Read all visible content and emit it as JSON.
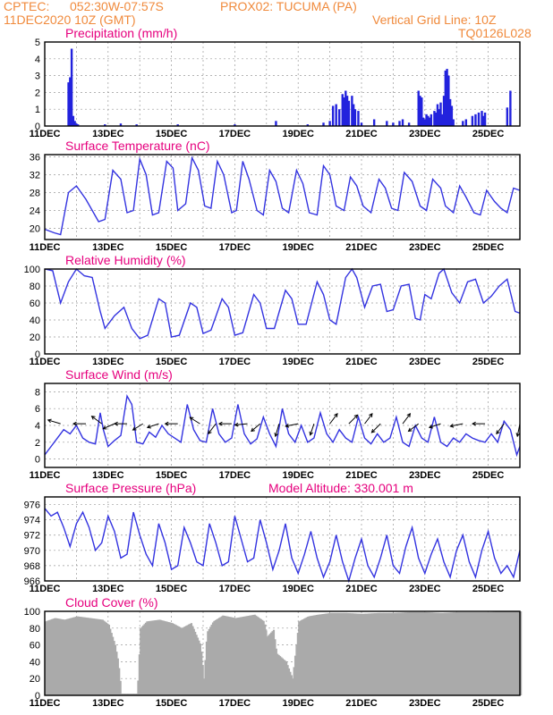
{
  "header": {
    "source": "CPTEC:",
    "coords": "052:30W-07:57S",
    "station": "PROX02: TUCUMA (PA)",
    "datetime": "11DEC2020 10Z (GMT)",
    "grid_note": "Vertical Grid Line: 10Z",
    "code": "TQ0126L028"
  },
  "colors": {
    "header": "#f08a3c",
    "title": "#e6007e",
    "series": "#3333e0",
    "cloud": "#aaaaaa"
  },
  "x_axis": {
    "start_day": 11,
    "end_day": 26,
    "tick_labels": [
      "11DEC",
      "13DEC",
      "15DEC",
      "17DEC",
      "19DEC",
      "21DEC",
      "23DEC",
      "25DEC"
    ],
    "tick_days": [
      11,
      13,
      15,
      17,
      19,
      21,
      23,
      25
    ]
  },
  "chart_data": [
    {
      "id": "precip",
      "type": "bar",
      "title": "Precipitation (mm/h)",
      "ylim": [
        0,
        5
      ],
      "yticks": [
        0,
        1,
        2,
        3,
        4,
        5
      ],
      "x": [
        11.75,
        11.8,
        11.85,
        11.9,
        11.95,
        12.0,
        12.05,
        12.9,
        13.4,
        13.9,
        15.2,
        17.0,
        18.3,
        19.3,
        19.8,
        20.0,
        20.1,
        20.2,
        20.3,
        20.4,
        20.45,
        20.5,
        20.55,
        20.6,
        20.7,
        20.75,
        20.8,
        20.9,
        21.0,
        21.4,
        21.8,
        22.0,
        22.2,
        22.3,
        22.5,
        22.8,
        22.85,
        22.9,
        22.95,
        23.0,
        23.05,
        23.1,
        23.15,
        23.2,
        23.3,
        23.35,
        23.4,
        23.45,
        23.5,
        23.55,
        23.6,
        23.65,
        23.7,
        23.75,
        23.8,
        23.85,
        23.9,
        24.2,
        24.3,
        24.5,
        24.6,
        24.7,
        24.8,
        24.85,
        24.9,
        25.6,
        25.7
      ],
      "values": [
        2.6,
        2.9,
        4.6,
        0.6,
        0.3,
        0.15,
        0.1,
        0.1,
        0.15,
        0.1,
        0.1,
        0.1,
        0.3,
        0.1,
        0.2,
        0.3,
        1.2,
        1.3,
        1.0,
        1.9,
        1.7,
        2.1,
        1.8,
        1.5,
        1.8,
        1.3,
        1.0,
        0.9,
        0.2,
        0.4,
        0.3,
        0.2,
        0.3,
        0.4,
        0.2,
        2.1,
        1.8,
        1.7,
        0.5,
        0.4,
        0.7,
        0.6,
        0.5,
        0.7,
        0.9,
        0.8,
        1.3,
        1.0,
        1.4,
        0.7,
        1.8,
        3.3,
        3.4,
        3.0,
        1.6,
        1.2,
        0.4,
        0.3,
        0.4,
        0.6,
        0.7,
        0.8,
        0.9,
        0.6,
        0.8,
        1.1,
        2.1
      ]
    },
    {
      "id": "temp",
      "type": "line",
      "title": "Surface Temperature (nC)",
      "ylim": [
        17.5,
        36.5
      ],
      "yticks": [
        20,
        24,
        28,
        32,
        36
      ],
      "x": [
        11.0,
        11.3,
        11.5,
        11.75,
        12.0,
        12.3,
        12.7,
        12.9,
        13.15,
        13.4,
        13.6,
        13.8,
        14.0,
        14.2,
        14.4,
        14.6,
        14.85,
        15.05,
        15.2,
        15.45,
        15.65,
        15.85,
        16.05,
        16.25,
        16.45,
        16.65,
        16.9,
        17.05,
        17.25,
        17.45,
        17.7,
        17.9,
        18.1,
        18.3,
        18.5,
        18.7,
        18.95,
        19.15,
        19.35,
        19.6,
        19.8,
        20.0,
        20.2,
        20.45,
        20.65,
        20.85,
        21.05,
        21.3,
        21.55,
        21.75,
        21.95,
        22.15,
        22.35,
        22.6,
        22.85,
        23.05,
        23.25,
        23.5,
        23.65,
        23.9,
        24.1,
        24.3,
        24.55,
        24.75,
        24.95,
        25.2,
        25.4,
        25.6,
        25.8,
        26.0
      ],
      "values": [
        19.8,
        19.0,
        18.6,
        28.0,
        29.5,
        26.5,
        21.5,
        22.0,
        33.0,
        31.0,
        23.5,
        24.0,
        35.5,
        32.0,
        23.0,
        23.5,
        35.0,
        33.5,
        24.0,
        25.5,
        35.8,
        33.0,
        25.0,
        24.5,
        35.0,
        32.0,
        23.5,
        24.0,
        35.0,
        31.0,
        24.0,
        23.0,
        33.0,
        30.5,
        24.5,
        23.5,
        33.0,
        30.0,
        23.5,
        23.0,
        34.0,
        32.0,
        25.0,
        24.0,
        31.5,
        29.5,
        25.0,
        23.5,
        31.0,
        29.0,
        24.5,
        24.0,
        32.5,
        30.5,
        25.0,
        24.0,
        31.0,
        29.0,
        25.0,
        23.5,
        29.5,
        27.0,
        23.5,
        23.0,
        28.5,
        26.0,
        24.5,
        23.5,
        29.0,
        28.5
      ]
    },
    {
      "id": "rh",
      "type": "line",
      "title": "Relative Humidity (%)",
      "ylim": [
        0,
        100
      ],
      "yticks": [
        0,
        20,
        40,
        60,
        80,
        100
      ],
      "x": [
        11.0,
        11.25,
        11.5,
        11.75,
        12.0,
        12.25,
        12.5,
        12.75,
        12.9,
        13.2,
        13.5,
        13.75,
        14.0,
        14.25,
        14.6,
        14.8,
        15.0,
        15.25,
        15.6,
        15.8,
        16.0,
        16.25,
        16.6,
        16.8,
        17.0,
        17.25,
        17.6,
        17.8,
        18.0,
        18.25,
        18.6,
        18.8,
        19.0,
        19.25,
        19.6,
        19.8,
        20.0,
        20.2,
        20.5,
        20.7,
        20.85,
        21.1,
        21.35,
        21.6,
        21.8,
        22.0,
        22.25,
        22.5,
        22.7,
        22.85,
        23.0,
        23.2,
        23.45,
        23.6,
        23.85,
        24.1,
        24.35,
        24.6,
        24.85,
        25.1,
        25.35,
        25.6,
        25.85,
        26.0
      ],
      "values": [
        100,
        98,
        60,
        85,
        100,
        92,
        90,
        50,
        30,
        45,
        55,
        30,
        18,
        22,
        65,
        60,
        20,
        22,
        60,
        55,
        24,
        28,
        65,
        55,
        22,
        25,
        70,
        60,
        30,
        30,
        75,
        65,
        35,
        35,
        85,
        70,
        40,
        35,
        90,
        100,
        90,
        55,
        80,
        82,
        50,
        52,
        80,
        82,
        42,
        40,
        70,
        65,
        95,
        100,
        72,
        60,
        85,
        88,
        60,
        68,
        80,
        88,
        50,
        48
      ]
    },
    {
      "id": "wind",
      "type": "line",
      "title": "Surface Wind (m/s)",
      "ylim": [
        -1,
        9
      ],
      "yticks": [
        0,
        2,
        4,
        6,
        8
      ],
      "x": [
        11.0,
        11.2,
        11.4,
        11.6,
        11.8,
        12.0,
        12.2,
        12.4,
        12.6,
        12.75,
        12.85,
        13.0,
        13.2,
        13.4,
        13.6,
        13.75,
        13.9,
        14.1,
        14.3,
        14.5,
        14.7,
        14.9,
        15.1,
        15.3,
        15.5,
        15.7,
        15.9,
        16.1,
        16.3,
        16.5,
        16.7,
        16.9,
        17.1,
        17.3,
        17.5,
        17.7,
        17.9,
        18.1,
        18.3,
        18.5,
        18.7,
        18.9,
        19.1,
        19.3,
        19.5,
        19.7,
        19.9,
        20.1,
        20.3,
        20.5,
        20.7,
        20.9,
        21.1,
        21.3,
        21.5,
        21.7,
        21.9,
        22.1,
        22.3,
        22.5,
        22.7,
        22.9,
        23.1,
        23.3,
        23.5,
        23.7,
        23.9,
        24.1,
        24.3,
        24.5,
        24.7,
        24.9,
        25.1,
        25.3,
        25.5,
        25.7,
        25.9,
        26.0
      ],
      "values": [
        0.5,
        1.5,
        2.5,
        3.5,
        3.0,
        4.0,
        2.5,
        2.0,
        1.8,
        5.5,
        3.5,
        1.5,
        2.2,
        2.8,
        7.5,
        6.5,
        2.0,
        1.8,
        3.2,
        2.6,
        4.0,
        3.0,
        2.5,
        2.0,
        6.5,
        3.5,
        2.2,
        2.0,
        6.0,
        3.0,
        2.0,
        2.5,
        6.5,
        3.0,
        1.8,
        2.4,
        5.0,
        3.0,
        1.5,
        6.0,
        3.0,
        2.0,
        4.0,
        2.0,
        2.5,
        5.5,
        3.0,
        2.0,
        3.5,
        2.5,
        2.0,
        5.0,
        2.5,
        1.8,
        3.0,
        2.0,
        2.5,
        5.0,
        2.0,
        1.5,
        4.0,
        2.5,
        2.0,
        5.0,
        2.0,
        1.5,
        2.5,
        2.0,
        3.0,
        2.5,
        2.2,
        2.0,
        3.0,
        2.0,
        4.5,
        3.5,
        0.5,
        1.5
      ],
      "vectors": [
        {
          "x": 11.5,
          "u": 1.0,
          "v": -0.3
        },
        {
          "x": 12.3,
          "u": 1.0,
          "v": 0.0
        },
        {
          "x": 12.8,
          "u": 0.8,
          "v": -0.6
        },
        {
          "x": 13.2,
          "u": 0.9,
          "v": 0.4
        },
        {
          "x": 13.6,
          "u": 1.0,
          "v": 0.0
        },
        {
          "x": 14.1,
          "u": 0.8,
          "v": 0.5
        },
        {
          "x": 14.6,
          "u": 0.9,
          "v": 0.3
        },
        {
          "x": 15.2,
          "u": 1.0,
          "v": 0.0
        },
        {
          "x": 15.9,
          "u": 0.8,
          "v": -0.5
        },
        {
          "x": 16.4,
          "u": 0.6,
          "v": 0.8
        },
        {
          "x": 16.9,
          "u": 1.0,
          "v": 0.0
        },
        {
          "x": 17.4,
          "u": 1.0,
          "v": 0.1
        },
        {
          "x": 17.8,
          "u": 0.7,
          "v": 0.6
        },
        {
          "x": 18.4,
          "u": 0.3,
          "v": 1.0
        },
        {
          "x": 19.0,
          "u": 1.0,
          "v": 0.2
        },
        {
          "x": 19.5,
          "u": 0.3,
          "v": 0.9
        },
        {
          "x": 20.0,
          "u": -0.6,
          "v": -0.8
        },
        {
          "x": 20.6,
          "u": -0.7,
          "v": -0.7
        },
        {
          "x": 21.1,
          "u": -0.6,
          "v": -0.8
        },
        {
          "x": 21.6,
          "u": 0.7,
          "v": 0.7
        },
        {
          "x": 22.3,
          "u": -0.6,
          "v": -0.8
        },
        {
          "x": 22.8,
          "u": 0.8,
          "v": 0.6
        },
        {
          "x": 23.5,
          "u": 0.9,
          "v": 0.3
        },
        {
          "x": 24.2,
          "u": 1.0,
          "v": 0.2
        },
        {
          "x": 24.9,
          "u": 1.0,
          "v": 0.0
        },
        {
          "x": 25.5,
          "u": 0.6,
          "v": 0.8
        },
        {
          "x": 26.0,
          "u": 0.2,
          "v": 1.0
        }
      ]
    },
    {
      "id": "pressure",
      "type": "line",
      "title": "Surface Pressure (hPa)",
      "subtitle": "Model Altitude: 330.001 m",
      "ylim": [
        966,
        977
      ],
      "yticks": [
        966,
        968,
        970,
        972,
        974,
        976
      ],
      "x": [
        11.0,
        11.2,
        11.4,
        11.6,
        11.8,
        12.0,
        12.2,
        12.4,
        12.6,
        12.8,
        13.0,
        13.2,
        13.4,
        13.6,
        13.8,
        14.0,
        14.2,
        14.4,
        14.6,
        14.8,
        15.0,
        15.2,
        15.4,
        15.6,
        15.8,
        16.0,
        16.2,
        16.4,
        16.6,
        16.8,
        17.0,
        17.2,
        17.4,
        17.6,
        17.8,
        18.0,
        18.2,
        18.4,
        18.6,
        18.8,
        19.0,
        19.2,
        19.4,
        19.6,
        19.8,
        20.0,
        20.2,
        20.4,
        20.6,
        20.8,
        21.0,
        21.2,
        21.4,
        21.6,
        21.8,
        22.0,
        22.2,
        22.4,
        22.6,
        22.8,
        23.0,
        23.2,
        23.4,
        23.6,
        23.8,
        24.0,
        24.2,
        24.4,
        24.6,
        24.8,
        25.0,
        25.2,
        25.4,
        25.6,
        25.8,
        26.0
      ],
      "values": [
        975.5,
        974.5,
        975.0,
        973.0,
        970.5,
        973.5,
        975.0,
        973.0,
        970.0,
        971.0,
        974.5,
        972.5,
        969.0,
        969.5,
        975.0,
        972.0,
        969.5,
        968.0,
        973.5,
        971.0,
        967.5,
        968.0,
        973.0,
        971.0,
        968.5,
        968.0,
        973.5,
        971.0,
        968.0,
        968.5,
        974.5,
        971.5,
        968.5,
        969.0,
        974.0,
        971.0,
        967.5,
        970.0,
        973.5,
        969.0,
        967.0,
        969.5,
        972.5,
        969.0,
        966.5,
        968.5,
        972.0,
        968.5,
        966.0,
        969.0,
        971.5,
        968.0,
        966.5,
        969.0,
        972.0,
        968.0,
        967.0,
        970.5,
        973.0,
        969.0,
        967.0,
        969.5,
        971.5,
        968.5,
        966.5,
        970.0,
        972.0,
        968.5,
        966.5,
        970.0,
        972.5,
        969.0,
        967.0,
        968.0,
        966.5,
        970.0
      ]
    },
    {
      "id": "cloud",
      "type": "area",
      "title": "Cloud Cover (%)",
      "ylim": [
        0,
        100
      ],
      "yticks": [
        0,
        20,
        40,
        60,
        80,
        100
      ],
      "x": [
        11.0,
        11.3,
        11.6,
        12.0,
        12.4,
        12.8,
        13.0,
        13.2,
        13.3,
        13.4,
        13.9,
        14.0,
        14.2,
        14.6,
        15.0,
        15.3,
        15.6,
        15.9,
        16.0,
        16.1,
        16.3,
        16.6,
        17.0,
        17.3,
        17.6,
        17.9,
        18.0,
        18.2,
        18.3,
        18.6,
        18.8,
        19.0,
        19.3,
        19.6,
        20.0,
        20.5,
        21.0,
        21.5,
        22.0,
        22.5,
        23.0,
        23.5,
        24.0,
        24.5,
        25.0,
        25.5,
        26.0
      ],
      "values": [
        88,
        92,
        90,
        94,
        92,
        90,
        84,
        60,
        40,
        2,
        2,
        80,
        88,
        90,
        86,
        80,
        86,
        60,
        20,
        75,
        88,
        95,
        92,
        94,
        96,
        88,
        70,
        78,
        50,
        40,
        20,
        88,
        94,
        96,
        98,
        98,
        97,
        98,
        98,
        99,
        99,
        98,
        99,
        99,
        99,
        100,
        100
      ]
    }
  ]
}
